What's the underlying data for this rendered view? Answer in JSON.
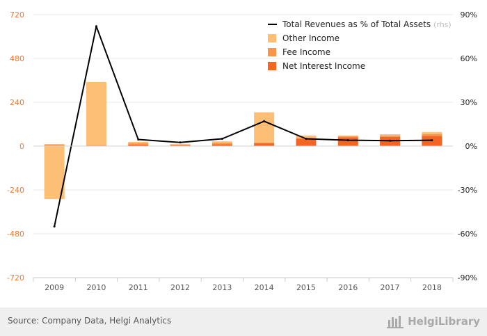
{
  "chart_data": {
    "type": "bar",
    "stacked": true,
    "categories": [
      "2009",
      "2010",
      "2011",
      "2012",
      "2013",
      "2014",
      "2015",
      "2016",
      "2017",
      "2018"
    ],
    "series": [
      {
        "name": "Net Interest Income",
        "kind": "bar",
        "axis": "left",
        "color": "#f26522",
        "values": [
          3,
          3,
          8,
          5,
          10,
          15,
          38,
          48,
          50,
          55
        ]
      },
      {
        "name": "Fee Income",
        "kind": "bar",
        "axis": "left",
        "color": "#f7954a",
        "values": [
          7,
          3,
          7,
          3,
          8,
          5,
          8,
          5,
          8,
          10
        ]
      },
      {
        "name": "Other Income",
        "kind": "bar",
        "axis": "left",
        "color": "#fdbf75",
        "values": [
          -290,
          345,
          8,
          3,
          8,
          165,
          12,
          5,
          7,
          12
        ]
      },
      {
        "name": "Total Revenues as % of Total Assets",
        "kind": "line",
        "axis": "right",
        "color": "#000000",
        "legend_note": "(rhs)",
        "values": [
          -55,
          82,
          4.5,
          2.5,
          5,
          17,
          5,
          4,
          3.7,
          4
        ]
      }
    ],
    "y_left": {
      "ticks": [
        "720",
        "480",
        "240",
        "0",
        "-240",
        "-480",
        "-720"
      ],
      "tick_values": [
        720,
        480,
        240,
        0,
        -240,
        -480,
        -720
      ],
      "range": [
        -720,
        720
      ]
    },
    "y_right": {
      "ticks": [
        "90%",
        "60%",
        "30%",
        "0%",
        "-30%",
        "-60%",
        "-90%"
      ],
      "tick_values": [
        90,
        60,
        30,
        0,
        -30,
        -60,
        -90
      ],
      "range": [
        -90,
        90
      ]
    },
    "legend_position": "top-right",
    "title": ""
  },
  "footer": {
    "source": "Source: Company Data, Helgi Analytics",
    "logo_text": "HelgiLibrary"
  },
  "colors": {
    "left_axis_text": "#f07a35",
    "grid": "#e8e8e8",
    "footer_bg": "#efefef"
  }
}
